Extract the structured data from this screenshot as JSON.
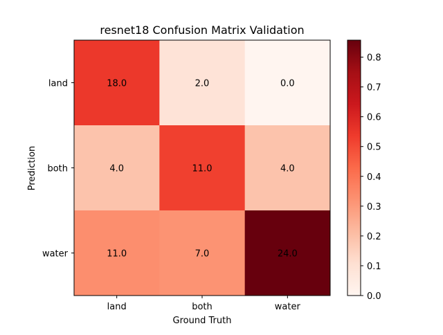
{
  "chart_data": {
    "type": "heatmap",
    "title": "resnet18 Confusion Matrix Validation",
    "xlabel": "Ground Truth",
    "ylabel": "Prediction",
    "x_categories": [
      "land",
      "both",
      "water"
    ],
    "y_categories": [
      "land",
      "both",
      "water"
    ],
    "values": [
      [
        18.0,
        2.0,
        0.0
      ],
      [
        4.0,
        11.0,
        4.0
      ],
      [
        11.0,
        7.0,
        24.0
      ]
    ],
    "cell_labels": [
      [
        "18.0",
        "2.0",
        "0.0"
      ],
      [
        "4.0",
        "11.0",
        "4.0"
      ],
      [
        "11.0",
        "7.0",
        "24.0"
      ]
    ],
    "color_values": [
      [
        0.545,
        0.091,
        0.0
      ],
      [
        0.19,
        0.524,
        0.19
      ],
      [
        0.333,
        0.318,
        0.857
      ]
    ],
    "colormap": "Reds",
    "colorbar": {
      "range": [
        0.0,
        0.857
      ],
      "ticks": [
        0.0,
        0.1,
        0.2,
        0.3,
        0.4,
        0.5,
        0.6,
        0.7,
        0.8
      ],
      "tick_labels": [
        "0.0",
        "0.1",
        "0.2",
        "0.3",
        "0.4",
        "0.5",
        "0.6",
        "0.7",
        "0.8"
      ]
    }
  }
}
